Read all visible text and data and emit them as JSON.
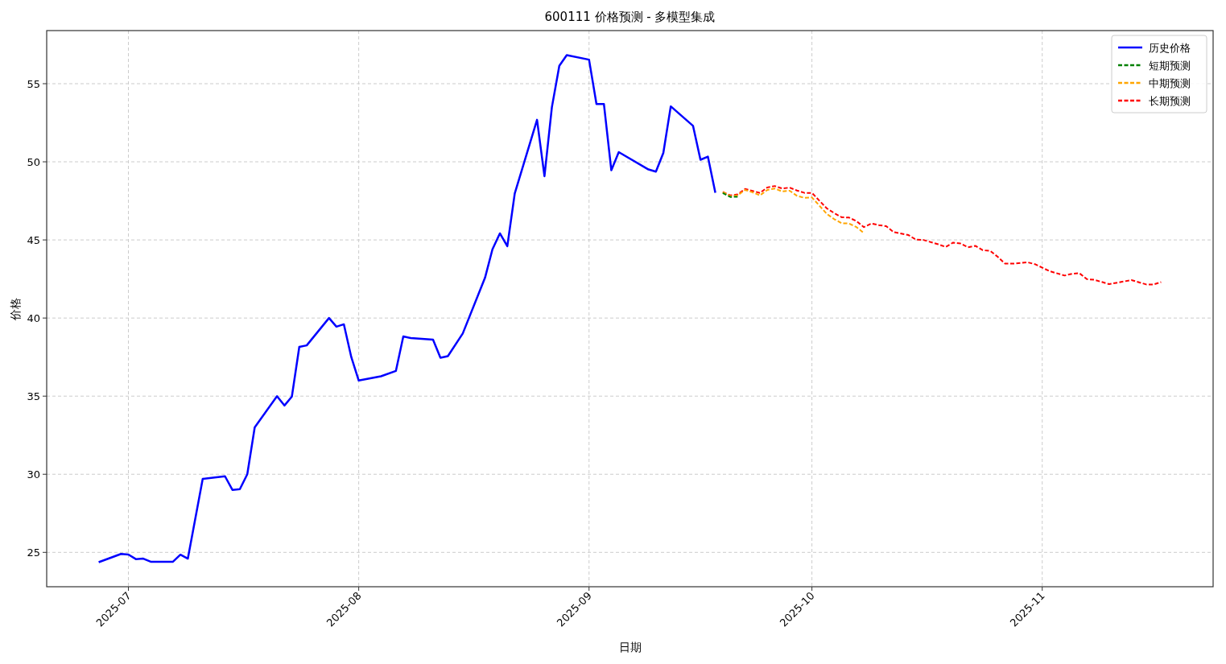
{
  "chart_data": {
    "type": "line",
    "title": "600111 价格预测 - 多模型集成",
    "xlabel": "日期",
    "ylabel": "价格",
    "xlim": [
      "2025-06-20",
      "2025-11-24"
    ],
    "ylim": [
      22.8,
      58.4
    ],
    "xticks": [
      {
        "value": "2025-07-01",
        "label": "2025-07"
      },
      {
        "value": "2025-08-01",
        "label": "2025-08"
      },
      {
        "value": "2025-09-01",
        "label": "2025-09"
      },
      {
        "value": "2025-10-01",
        "label": "2025-10"
      },
      {
        "value": "2025-11-01",
        "label": "2025-11"
      }
    ],
    "yticks": [
      25,
      30,
      35,
      40,
      45,
      50,
      55
    ],
    "grid": true,
    "legend": "top right",
    "series": [
      {
        "name": "历史价格",
        "color": "#0000ff",
        "line_style": "solid",
        "x": [
          "2025-06-27",
          "2025-06-30",
          "2025-07-01",
          "2025-07-02",
          "2025-07-03",
          "2025-07-04",
          "2025-07-07",
          "2025-07-08",
          "2025-07-09",
          "2025-07-11",
          "2025-07-14",
          "2025-07-15",
          "2025-07-16",
          "2025-07-17",
          "2025-07-18",
          "2025-07-21",
          "2025-07-22",
          "2025-07-23",
          "2025-07-24",
          "2025-07-25",
          "2025-07-28",
          "2025-07-29",
          "2025-07-30",
          "2025-07-31",
          "2025-08-01",
          "2025-08-04",
          "2025-08-06",
          "2025-08-07",
          "2025-08-08",
          "2025-08-11",
          "2025-08-12",
          "2025-08-13",
          "2025-08-15",
          "2025-08-18",
          "2025-08-19",
          "2025-08-20",
          "2025-08-21",
          "2025-08-22",
          "2025-08-25",
          "2025-08-26",
          "2025-08-27",
          "2025-08-28",
          "2025-08-29",
          "2025-09-01",
          "2025-09-02",
          "2025-09-03",
          "2025-09-04",
          "2025-09-05",
          "2025-09-09",
          "2025-09-10",
          "2025-09-11",
          "2025-09-12",
          "2025-09-15",
          "2025-09-16",
          "2025-09-17",
          "2025-09-18"
        ],
        "values": [
          24.37,
          24.9,
          24.86,
          24.57,
          24.6,
          24.4,
          24.4,
          24.85,
          24.6,
          29.7,
          29.87,
          29.0,
          29.05,
          30.0,
          33.0,
          35.0,
          34.4,
          34.97,
          38.15,
          38.25,
          40.0,
          39.45,
          39.6,
          37.5,
          36.0,
          36.27,
          36.61,
          38.82,
          38.72,
          38.62,
          37.46,
          37.56,
          39.01,
          42.58,
          44.4,
          45.42,
          44.6,
          47.97,
          52.69,
          49.08,
          53.5,
          56.15,
          56.83,
          56.54,
          53.7,
          53.7,
          49.46,
          50.62,
          49.51,
          49.37,
          50.57,
          53.55,
          52.3,
          50.13,
          50.33,
          48.02
        ]
      },
      {
        "name": "短期预测",
        "color": "#008000",
        "line_style": "dashed",
        "x": [
          "2025-09-19",
          "2025-09-20",
          "2025-09-21"
        ],
        "values": [
          48.0,
          47.75,
          47.76
        ]
      },
      {
        "name": "中期预测",
        "color": "#ffa500",
        "line_style": "dashed",
        "x": [
          "2025-09-19",
          "2025-09-20",
          "2025-09-21",
          "2025-09-22",
          "2025-09-23",
          "2025-09-24",
          "2025-09-25",
          "2025-09-26",
          "2025-09-27",
          "2025-09-28",
          "2025-09-29",
          "2025-09-30",
          "2025-10-01",
          "2025-10-03",
          "2025-10-04",
          "2025-10-05",
          "2025-10-06",
          "2025-10-07",
          "2025-10-08"
        ],
        "values": [
          48.07,
          47.8,
          47.85,
          48.2,
          48.05,
          47.85,
          48.2,
          48.29,
          48.1,
          48.15,
          47.82,
          47.69,
          47.72,
          46.67,
          46.33,
          46.07,
          46.05,
          45.82,
          45.44
        ]
      },
      {
        "name": "长期预测",
        "color": "#ff0000",
        "line_style": "dashed",
        "x": [
          "2025-09-19",
          "2025-09-20",
          "2025-09-21",
          "2025-09-22",
          "2025-09-23",
          "2025-09-24",
          "2025-09-25",
          "2025-09-26",
          "2025-09-27",
          "2025-09-28",
          "2025-09-29",
          "2025-09-30",
          "2025-10-01",
          "2025-10-03",
          "2025-10-04",
          "2025-10-05",
          "2025-10-06",
          "2025-10-07",
          "2025-10-08",
          "2025-10-09",
          "2025-10-10",
          "2025-10-11",
          "2025-10-12",
          "2025-10-14",
          "2025-10-15",
          "2025-10-16",
          "2025-10-18",
          "2025-10-19",
          "2025-10-20",
          "2025-10-21",
          "2025-10-22",
          "2025-10-23",
          "2025-10-24",
          "2025-10-25",
          "2025-10-26",
          "2025-10-27",
          "2025-10-28",
          "2025-10-30",
          "2025-10-31",
          "2025-11-02",
          "2025-11-04",
          "2025-11-05",
          "2025-11-06",
          "2025-11-07",
          "2025-11-08",
          "2025-11-10",
          "2025-11-13",
          "2025-11-15",
          "2025-11-16",
          "2025-11-17"
        ],
        "values": [
          48.07,
          47.85,
          47.91,
          48.26,
          48.14,
          48.01,
          48.36,
          48.45,
          48.29,
          48.35,
          48.16,
          48.01,
          48.01,
          47.02,
          46.72,
          46.45,
          46.43,
          46.2,
          45.82,
          46.05,
          45.95,
          45.88,
          45.5,
          45.31,
          45.02,
          45.0,
          44.72,
          44.55,
          44.83,
          44.77,
          44.53,
          44.62,
          44.34,
          44.3,
          43.92,
          43.48,
          43.48,
          43.57,
          43.45,
          43.0,
          42.72,
          42.83,
          42.87,
          42.49,
          42.45,
          42.17,
          42.43,
          42.15,
          42.15,
          42.3
        ]
      }
    ]
  }
}
